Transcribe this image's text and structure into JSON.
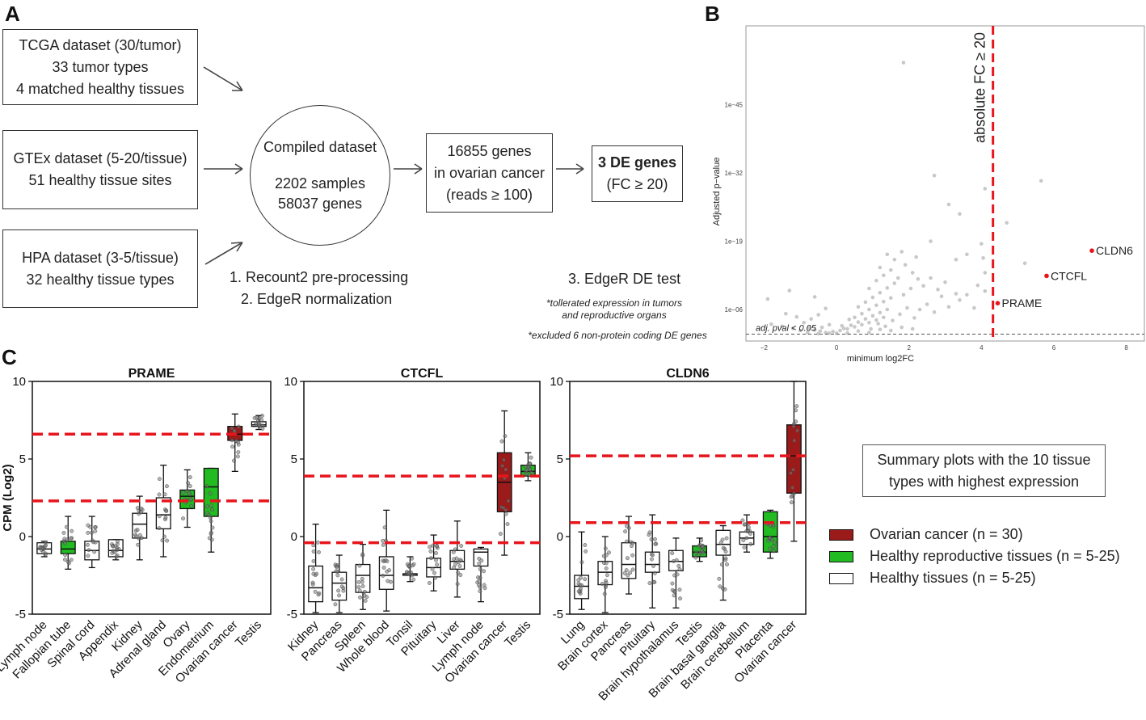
{
  "panels": {
    "a": "A",
    "b": "B",
    "c": "C"
  },
  "flow": {
    "tcga": [
      "TCGA dataset (30/tumor)",
      "33 tumor types",
      "4 matched healthy tissues"
    ],
    "gtex": [
      "GTEx dataset (5-20/tissue)",
      "51 healthy tissue sites"
    ],
    "hpa": [
      "HPA dataset (3-5/tissue)",
      "32 healthy tissue types"
    ],
    "compiled": [
      "Compiled dataset",
      "2202 samples",
      "58037 genes"
    ],
    "genes": [
      "16855 genes",
      "in ovarian cancer",
      "(reads ≥ 100)"
    ],
    "de_title": "3 DE genes",
    "de_sub": "(FC ≥ 20)",
    "steps": [
      "1. Recount2 pre-processing",
      "2. EdgeR normalization"
    ],
    "step3": "3. EdgeR DE test",
    "note1": [
      "*tollerated expression in tumors",
      "and reproductive organs"
    ],
    "note2": "*excluded 6 non-protein coding DE genes"
  },
  "colors": {
    "ovarian": "#9b1b1b",
    "reproductive": "#22bb22",
    "healthy": "#ffffff",
    "threshold": "#e8141b",
    "gray_point": "#c8c8c8",
    "highlight": "#e8141b"
  },
  "chart_data": [
    {
      "type": "scatter",
      "title": "",
      "xlabel": "minimum log2FC",
      "ylabel": "Adjusted p−value",
      "xlim": [
        -2.5,
        8.5
      ],
      "ylim": [
        0,
        60
      ],
      "xticks": [
        -2,
        0,
        2,
        4,
        6,
        8
      ],
      "xtick_labels": [
        "−2",
        "0",
        "2",
        "4",
        "6",
        "8"
      ],
      "yticks": [
        6,
        19,
        32,
        45
      ],
      "ytick_labels": [
        "1e−06",
        "1e−19",
        "1e−32",
        "1e−45"
      ],
      "vline": {
        "x": 4.32,
        "label": "absolute FC ≥ 20"
      },
      "hline": {
        "y": 1.3,
        "label": "adj. pval < 0.05"
      },
      "highlighted": [
        {
          "label": "CLDN6",
          "x": 7.05,
          "y": 17.2
        },
        {
          "label": "CTCFL",
          "x": 5.8,
          "y": 12.4
        },
        {
          "label": "PRAME",
          "x": 4.45,
          "y": 7.2
        }
      ],
      "background_points": [
        [
          -0.5,
          1.4
        ],
        [
          -0.3,
          1.6
        ],
        [
          -0.1,
          1.8
        ],
        [
          0.1,
          2.0
        ],
        [
          0.3,
          2.3
        ],
        [
          0.5,
          2.7
        ],
        [
          0.7,
          3.1
        ],
        [
          0.9,
          3.5
        ],
        [
          1.1,
          4.0
        ],
        [
          1.3,
          4.5
        ],
        [
          0.2,
          2.4
        ],
        [
          0.4,
          3.0
        ],
        [
          0.6,
          3.6
        ],
        [
          0.8,
          4.2
        ],
        [
          1.0,
          4.8
        ],
        [
          1.2,
          5.4
        ],
        [
          1.4,
          6.0
        ],
        [
          0.5,
          4.5
        ],
        [
          0.7,
          5.2
        ],
        [
          0.9,
          6.0
        ],
        [
          1.1,
          6.8
        ],
        [
          1.3,
          7.5
        ],
        [
          1.5,
          8.2
        ],
        [
          0.6,
          6.5
        ],
        [
          0.8,
          7.4
        ],
        [
          1.0,
          8.3
        ],
        [
          1.2,
          9.2
        ],
        [
          1.4,
          10.1
        ],
        [
          1.6,
          11.0
        ],
        [
          0.9,
          10.0
        ],
        [
          1.1,
          11.5
        ],
        [
          1.3,
          12.5
        ],
        [
          1.5,
          13.5
        ],
        [
          1.7,
          12.0
        ],
        [
          1.2,
          14.0
        ],
        [
          1.6,
          15.5
        ],
        [
          1.9,
          14.5
        ],
        [
          2.1,
          13.0
        ],
        [
          1.4,
          16.5
        ],
        [
          1.8,
          17.0
        ],
        [
          -0.8,
          1.6
        ],
        [
          -1.0,
          2.0
        ],
        [
          -1.2,
          2.4
        ],
        [
          -0.6,
          2.1
        ],
        [
          -0.4,
          2.6
        ],
        [
          -0.2,
          3.1
        ],
        [
          -1.5,
          2.8
        ],
        [
          -1.8,
          3.2
        ],
        [
          -0.9,
          3.5
        ],
        [
          -0.7,
          4.2
        ],
        [
          -1.1,
          4.6
        ],
        [
          -1.4,
          5.2
        ],
        [
          -0.5,
          5.0
        ],
        [
          -0.3,
          6.2
        ],
        [
          -1.9,
          8.0
        ],
        [
          -0.6,
          8.4
        ],
        [
          -1.3,
          9.6
        ],
        [
          0.0,
          1.5
        ],
        [
          0.15,
          2.9
        ],
        [
          0.35,
          4.1
        ],
        [
          2.3,
          6.0
        ],
        [
          2.5,
          7.0
        ],
        [
          2.7,
          5.5
        ],
        [
          2.9,
          8.5
        ],
        [
          3.1,
          6.5
        ],
        [
          3.3,
          9.0
        ],
        [
          2.4,
          10.5
        ],
        [
          2.6,
          12.0
        ],
        [
          2.8,
          9.8
        ],
        [
          3.0,
          11.2
        ],
        [
          3.4,
          7.8
        ],
        [
          3.6,
          8.8
        ],
        [
          3.8,
          6.3
        ],
        [
          3.9,
          10.6
        ],
        [
          2.2,
          16.0
        ],
        [
          2.6,
          19.0
        ],
        [
          3.3,
          15.5
        ],
        [
          3.6,
          16.5
        ],
        [
          4.0,
          18.5
        ],
        [
          4.1,
          9.5
        ],
        [
          2.7,
          31.5
        ],
        [
          3.1,
          26.0
        ],
        [
          3.4,
          24.2
        ],
        [
          4.1,
          29.0
        ],
        [
          4.1,
          13.0
        ],
        [
          4.05,
          15.8
        ],
        [
          5.2,
          14.8
        ],
        [
          5.4,
          7.5
        ],
        [
          5.65,
          30.5
        ],
        [
          4.7,
          22.5
        ],
        [
          0.95,
          2.3
        ],
        [
          1.15,
          3.3
        ],
        [
          1.35,
          2.8
        ],
        [
          1.55,
          3.9
        ],
        [
          1.75,
          5.1
        ],
        [
          1.95,
          6.3
        ],
        [
          2.15,
          4.4
        ],
        [
          1.85,
          8.8
        ],
        [
          2.05,
          10.0
        ],
        [
          2.25,
          11.8
        ],
        [
          0.3,
          1.5
        ],
        [
          0.6,
          1.9
        ],
        [
          0.9,
          1.6
        ],
        [
          1.2,
          2.2
        ],
        [
          1.5,
          2.0
        ],
        [
          1.8,
          2.6
        ],
        [
          2.1,
          2.3
        ],
        [
          -0.2,
          1.5
        ],
        [
          -0.45,
          1.9
        ],
        [
          -0.75,
          2.5
        ],
        [
          1.85,
          53.0
        ]
      ]
    },
    {
      "type": "boxplot",
      "title": "PRAME",
      "ylabel": "CPM (Log2)",
      "ylim": [
        -5,
        10
      ],
      "yticks": [
        -5,
        0,
        5,
        10
      ],
      "thresholds": [
        2.3,
        6.6
      ],
      "categories": [
        "Lymph node",
        "Fallopian tube",
        "Spinal cord",
        "Appendix",
        "Kidney",
        "Adrenal gland",
        "Ovary",
        "Endometrium",
        "Ovarian cancer",
        "Testis"
      ],
      "groups": [
        "healthy",
        "reproductive",
        "healthy",
        "healthy",
        "healthy",
        "healthy",
        "reproductive",
        "reproductive",
        "ovarian",
        "healthy"
      ],
      "stats": [
        [
          -1.3,
          -1.1,
          -0.8,
          -0.4,
          -0.3
        ],
        [
          -2.1,
          -1.1,
          -0.8,
          -0.3,
          1.3
        ],
        [
          -2.0,
          -1.5,
          -0.9,
          -0.3,
          1.3
        ],
        [
          -1.5,
          -1.3,
          -0.9,
          -0.2,
          -0.2
        ],
        [
          -1.5,
          -0.1,
          0.8,
          1.5,
          2.6
        ],
        [
          -1.3,
          0.5,
          1.4,
          2.5,
          4.6
        ],
        [
          0.6,
          1.8,
          2.6,
          3.0,
          4.3
        ],
        [
          -1.0,
          1.3,
          3.2,
          4.4,
          4.4
        ],
        [
          4.2,
          6.2,
          6.6,
          7.1,
          7.9
        ],
        [
          6.9,
          7.1,
          7.2,
          7.4,
          7.8
        ]
      ]
    },
    {
      "type": "boxplot",
      "title": "CTCFL",
      "ylim": [
        -5,
        10
      ],
      "yticks": [
        -5,
        0,
        5,
        10
      ],
      "thresholds": [
        -0.4,
        3.9
      ],
      "categories": [
        "Kidney",
        "Pancreas",
        "Spleen",
        "Whole blood",
        "Tonsil",
        "Pituitary",
        "Liver",
        "Lymph node",
        "Ovarian cancer",
        "Testis"
      ],
      "groups": [
        "healthy",
        "healthy",
        "healthy",
        "healthy",
        "healthy",
        "healthy",
        "healthy",
        "healthy",
        "ovarian",
        "reproductive"
      ],
      "stats": [
        [
          -4.9,
          -4.2,
          -3.3,
          -1.9,
          0.8
        ],
        [
          -4.9,
          -4.1,
          -3.0,
          -2.3,
          -1.2
        ],
        [
          -4.7,
          -3.6,
          -2.5,
          -1.8,
          -0.5
        ],
        [
          -4.8,
          -3.4,
          -2.5,
          -1.3,
          1.7
        ],
        [
          -2.9,
          -2.5,
          -2.4,
          -2.4,
          -1.3
        ],
        [
          -3.5,
          -2.6,
          -2.0,
          -1.4,
          0.1
        ],
        [
          -3.9,
          -2.1,
          -1.6,
          -0.9,
          1.0
        ],
        [
          -4.2,
          -1.9,
          -1.0,
          -0.8,
          -0.7
        ],
        [
          -1.2,
          1.6,
          3.5,
          5.4,
          8.1
        ],
        [
          3.6,
          3.9,
          4.2,
          4.6,
          5.4
        ]
      ]
    },
    {
      "type": "boxplot",
      "title": "CLDN6",
      "ylim": [
        -5,
        10
      ],
      "yticks": [
        -5,
        0,
        5,
        10
      ],
      "thresholds": [
        0.9,
        5.2
      ],
      "categories": [
        "Lung",
        "Brain cortex",
        "Pancreas",
        "Pituitary",
        "Brain hypothalamus",
        "Testis",
        "Brain basal ganglia",
        "Brain cerebellum",
        "Placenta",
        "Ovarian cancer"
      ],
      "groups": [
        "healthy",
        "healthy",
        "healthy",
        "healthy",
        "healthy",
        "reproductive",
        "healthy",
        "healthy",
        "reproductive",
        "ovarian"
      ],
      "stats": [
        [
          -4.7,
          -4.0,
          -3.2,
          -2.5,
          0.3
        ],
        [
          -4.9,
          -3.1,
          -2.3,
          -1.6,
          0.0
        ],
        [
          -3.7,
          -2.7,
          -1.8,
          -0.4,
          1.3
        ],
        [
          -4.6,
          -2.3,
          -1.8,
          -1.0,
          1.4
        ],
        [
          -4.6,
          -2.2,
          -1.6,
          -0.9,
          -0.1
        ],
        [
          -1.6,
          -1.3,
          -1.0,
          -0.6,
          -0.1
        ],
        [
          -4.1,
          -1.2,
          -0.5,
          0.4,
          0.7
        ],
        [
          -1.0,
          -0.5,
          -0.1,
          0.3,
          1.4
        ],
        [
          -1.4,
          -1.0,
          0.0,
          1.6,
          1.7
        ],
        [
          -0.3,
          2.8,
          5.2,
          7.2,
          10.0
        ]
      ]
    }
  ],
  "summary": [
    "Summary plots with the 10 tissue",
    "types with highest expression"
  ],
  "legend": [
    {
      "label": "Ovarian cancer (n = 30)",
      "group": "ovarian"
    },
    {
      "label": "Healthy reproductive tissues (n = 5-25)",
      "group": "reproductive"
    },
    {
      "label": "Healthy tissues (n = 5-25)",
      "group": "healthy"
    }
  ]
}
